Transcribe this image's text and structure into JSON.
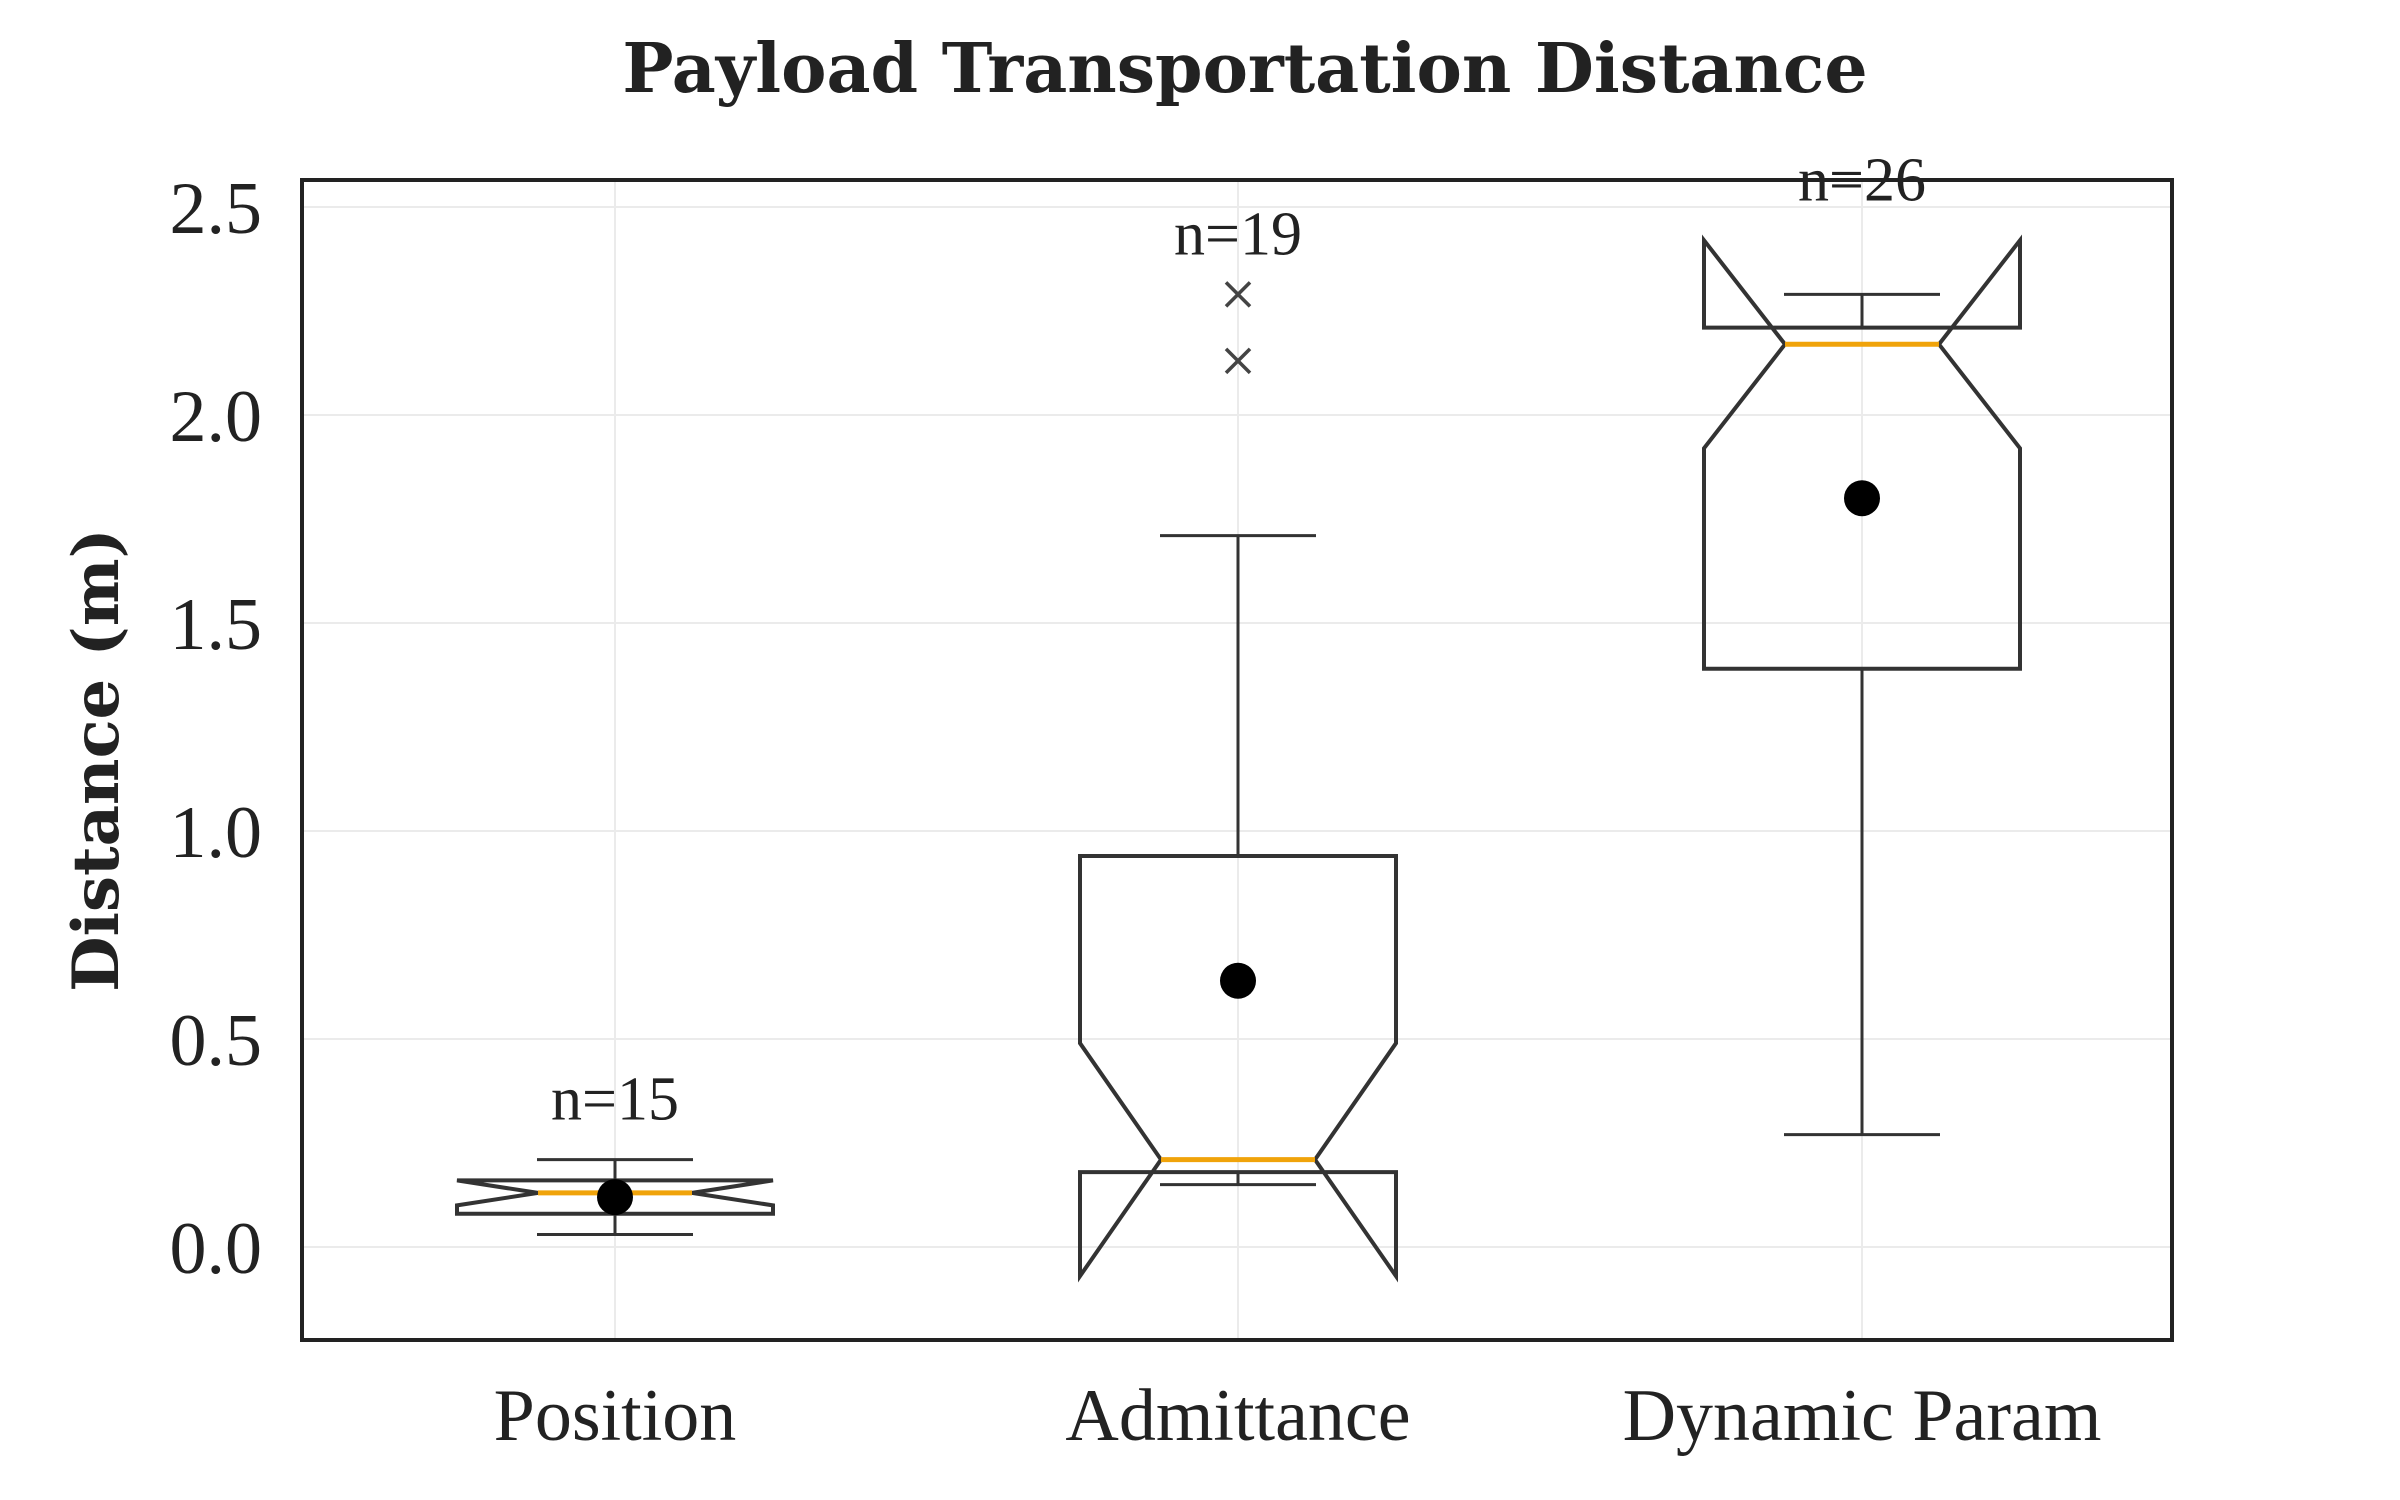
{
  "chart_data": {
    "type": "box",
    "title": "Payload Transportation Distance",
    "xlabel": "",
    "ylabel": "Distance (m)",
    "ylim": [
      -0.23,
      2.56
    ],
    "yticks": [
      0.0,
      0.5,
      1.0,
      1.5,
      2.0,
      2.5
    ],
    "ytick_labels": [
      "0.0",
      "0.5",
      "1.0",
      "1.5",
      "2.0",
      "2.5"
    ],
    "grid": true,
    "notched": true,
    "categories": [
      "Position",
      "Admittance",
      "Dynamic Param"
    ],
    "boxes": [
      {
        "category": "Position",
        "n_label": "n=15",
        "whisker_low": 0.03,
        "q1": 0.08,
        "notch_low": 0.1,
        "median": 0.13,
        "notch_high": 0.16,
        "q3": 0.16,
        "whisker_high": 0.21,
        "mean": 0.12,
        "outliers": []
      },
      {
        "category": "Admittance",
        "n_label": "n=19",
        "whisker_low": 0.15,
        "q1": 0.18,
        "notch_low": -0.07,
        "median": 0.21,
        "notch_high": 0.49,
        "q3": 0.94,
        "whisker_high": 1.71,
        "mean": 0.64,
        "outliers": [
          2.13,
          2.29
        ]
      },
      {
        "category": "Dynamic Param",
        "n_label": "n=26",
        "whisker_low": 0.27,
        "q1": 1.39,
        "notch_low": 1.92,
        "median": 2.17,
        "notch_high": 2.42,
        "q3": 2.21,
        "whisker_high": 2.29,
        "mean": 1.8,
        "outliers": []
      }
    ],
    "colors": {
      "box_edge": "#333333",
      "median": "#f0a30a",
      "mean": "#000000",
      "grid": "#ebebeb",
      "frame": "#222222",
      "outlier": "#444444"
    }
  }
}
